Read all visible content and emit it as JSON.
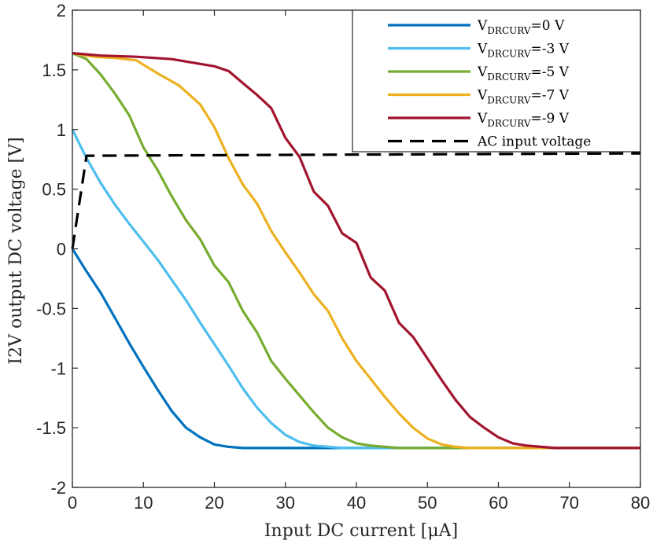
{
  "chart_data": {
    "type": "line",
    "xlabel": "Input DC current [μA]",
    "ylabel": "I2V output DC voltage [V]",
    "xlim": [
      0,
      80
    ],
    "ylim": [
      -2,
      2
    ],
    "xticks": [
      0,
      10,
      20,
      30,
      40,
      50,
      60,
      70,
      80
    ],
    "yticks": [
      2,
      1.5,
      1,
      0.5,
      0,
      -0.5,
      -1,
      -1.5,
      -2
    ],
    "ytick_labels": [
      "2",
      "1.5",
      "1",
      "0.5",
      "0",
      "-0.5",
      "-1",
      "-1.5",
      "-2"
    ],
    "legend_position": "top-right",
    "series": [
      {
        "name": "V_DRCURV=0 V",
        "label_main": "V",
        "label_sub": "DRCURV",
        "label_tail": "=0 V",
        "color": "#0072BD",
        "dash": "solid",
        "x": [
          0,
          2,
          4,
          6,
          8,
          10,
          12,
          14,
          16,
          18,
          20,
          22,
          24,
          26,
          30,
          40,
          60,
          80
        ],
        "y": [
          0,
          -0.19,
          -0.37,
          -0.58,
          -0.79,
          -0.99,
          -1.18,
          -1.36,
          -1.5,
          -1.58,
          -1.64,
          -1.66,
          -1.67,
          -1.67,
          -1.67,
          -1.67,
          -1.67,
          -1.67
        ]
      },
      {
        "name": "V_DRCURV=-3 V",
        "label_main": "V",
        "label_sub": "DRCURV",
        "label_tail": "=-3 V",
        "color": "#4DBEEE",
        "dash": "solid",
        "x": [
          0,
          2,
          4,
          6,
          8,
          10,
          12,
          14,
          16,
          18,
          20,
          22,
          24,
          26,
          28,
          30,
          32,
          34,
          36,
          38,
          40,
          60,
          80
        ],
        "y": [
          1,
          0.76,
          0.55,
          0.37,
          0.21,
          0.06,
          -0.09,
          -0.26,
          -0.43,
          -0.62,
          -0.8,
          -0.98,
          -1.17,
          -1.33,
          -1.46,
          -1.56,
          -1.62,
          -1.65,
          -1.66,
          -1.67,
          -1.67,
          -1.67,
          -1.67
        ]
      },
      {
        "name": "V_DRCURV=-5 V",
        "label_main": "V",
        "label_sub": "DRCURV",
        "label_tail": "=-5 V",
        "color": "#77AC30",
        "dash": "solid",
        "x": [
          0,
          2,
          4,
          6,
          8,
          10,
          12,
          14,
          16,
          18,
          20,
          22,
          24,
          26,
          28,
          30,
          32,
          34,
          36,
          38,
          40,
          42,
          44,
          46,
          48,
          50,
          60,
          80
        ],
        "y": [
          1.64,
          1.59,
          1.46,
          1.3,
          1.12,
          0.85,
          0.66,
          0.44,
          0.24,
          0.08,
          -0.14,
          -0.28,
          -0.52,
          -0.7,
          -0.94,
          -1.09,
          -1.23,
          -1.37,
          -1.5,
          -1.58,
          -1.63,
          -1.65,
          -1.66,
          -1.67,
          -1.67,
          -1.67,
          -1.67,
          -1.67
        ]
      },
      {
        "name": "V_DRCURV=-7 V",
        "label_main": "V",
        "label_sub": "DRCURV",
        "label_tail": "=-7 V",
        "color": "#EDB120",
        "dash": "solid",
        "x": [
          0,
          3,
          6,
          9,
          12,
          15,
          18,
          20,
          22,
          24,
          26,
          28,
          30,
          32,
          34,
          36,
          38,
          40,
          42,
          44,
          46,
          48,
          50,
          52,
          54,
          56,
          58,
          60,
          64,
          80
        ],
        "y": [
          1.64,
          1.61,
          1.6,
          1.58,
          1.47,
          1.37,
          1.21,
          1.02,
          0.76,
          0.54,
          0.38,
          0.15,
          -0.03,
          -0.2,
          -0.38,
          -0.52,
          -0.75,
          -0.94,
          -1.09,
          -1.24,
          -1.38,
          -1.5,
          -1.59,
          -1.64,
          -1.66,
          -1.67,
          -1.67,
          -1.67,
          -1.67,
          -1.67
        ]
      },
      {
        "name": "V_DRCURV=-9 V",
        "label_main": "V",
        "label_sub": "DRCURV",
        "label_tail": "=-9 V",
        "color": "#A2142F",
        "dash": "solid",
        "x": [
          0,
          4,
          9,
          14,
          18,
          20,
          22,
          24,
          26,
          28,
          30,
          32,
          34,
          36,
          38,
          40,
          42,
          44,
          46,
          48,
          50,
          52,
          54,
          56,
          58,
          60,
          62,
          64,
          66,
          68,
          70,
          72,
          74,
          80
        ],
        "y": [
          1.64,
          1.62,
          1.61,
          1.59,
          1.55,
          1.53,
          1.49,
          1.39,
          1.29,
          1.18,
          0.93,
          0.77,
          0.48,
          0.36,
          0.13,
          0.05,
          -0.24,
          -0.35,
          -0.62,
          -0.74,
          -0.92,
          -1.1,
          -1.27,
          -1.41,
          -1.5,
          -1.58,
          -1.63,
          -1.65,
          -1.66,
          -1.67,
          -1.67,
          -1.67,
          -1.67,
          -1.67
        ]
      },
      {
        "name": "AC input voltage",
        "label_main": "AC input voltage",
        "label_sub": "",
        "label_tail": "",
        "color": "#000000",
        "dash": "dashed",
        "x": [
          0,
          2,
          80
        ],
        "y": [
          0,
          0.78,
          0.8
        ]
      }
    ]
  }
}
